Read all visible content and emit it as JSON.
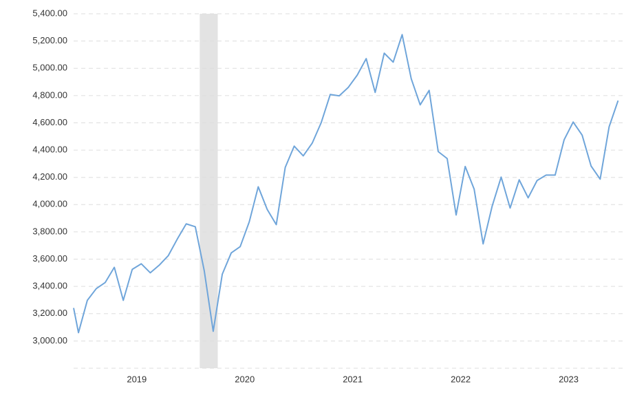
{
  "chart_data": {
    "type": "line",
    "x": [
      2018.915,
      2018.96,
      2019.042,
      2019.125,
      2019.208,
      2019.292,
      2019.375,
      2019.458,
      2019.542,
      2019.625,
      2019.708,
      2019.792,
      2019.875,
      2019.958,
      2020.042,
      2020.125,
      2020.208,
      2020.292,
      2020.375,
      2020.458,
      2020.542,
      2020.625,
      2020.708,
      2020.792,
      2020.875,
      2020.958,
      2021.042,
      2021.125,
      2021.208,
      2021.292,
      2021.375,
      2021.458,
      2021.542,
      2021.625,
      2021.708,
      2021.792,
      2021.875,
      2021.958,
      2022.042,
      2022.125,
      2022.208,
      2022.292,
      2022.375,
      2022.458,
      2022.542,
      2022.625,
      2022.708,
      2022.792,
      2022.875,
      2022.958,
      2023.042,
      2023.125,
      2023.208,
      2023.292,
      2023.375,
      2023.458,
      2023.542,
      2023.625,
      2023.708,
      2023.792,
      2023.875,
      2023.958
    ],
    "series": [
      {
        "color": "#6fa5da",
        "values": [
          3242,
          3061,
          3298,
          3384,
          3429,
          3540,
          3298,
          3525,
          3566,
          3500,
          3556,
          3626,
          3747,
          3859,
          3838,
          3515,
          3071,
          3490,
          3646,
          3692,
          3874,
          4131,
          3965,
          3853,
          4273,
          4429,
          4358,
          4451,
          4601,
          4808,
          4798,
          4859,
          4950,
          5071,
          4823,
          5111,
          5045,
          5247,
          4924,
          4732,
          4838,
          4389,
          4338,
          3924,
          4280,
          4113,
          3712,
          3990,
          4202,
          3975,
          4182,
          4050,
          4177,
          4217,
          4217,
          4475,
          4606,
          4510,
          4283,
          4187,
          4571,
          4763
        ]
      }
    ],
    "shade": [
      2020.083,
      2020.25
    ],
    "xlim": [
      2018.915,
      2024.0
    ],
    "ylim": [
      2800,
      5400
    ],
    "xticks": [
      {
        "value": 2019.5,
        "label": "2019"
      },
      {
        "value": 2020.5,
        "label": "2020"
      },
      {
        "value": 2021.5,
        "label": "2021"
      },
      {
        "value": 2022.5,
        "label": "2022"
      },
      {
        "value": 2023.5,
        "label": "2023"
      }
    ],
    "yticks": [
      {
        "value": 3000,
        "label": "3,000.00"
      },
      {
        "value": 3200,
        "label": "3,200.00"
      },
      {
        "value": 3400,
        "label": "3,400.00"
      },
      {
        "value": 3600,
        "label": "3,600.00"
      },
      {
        "value": 3800,
        "label": "3,800.00"
      },
      {
        "value": 4000,
        "label": "4,000.00"
      },
      {
        "value": 4200,
        "label": "4,200.00"
      },
      {
        "value": 4400,
        "label": "4,400.00"
      },
      {
        "value": 4600,
        "label": "4,600.00"
      },
      {
        "value": 4800,
        "label": "4,800.00"
      },
      {
        "value": 5000,
        "label": "5,000.00"
      },
      {
        "value": 5200,
        "label": "5,200.00"
      },
      {
        "value": 5400,
        "label": "5,400.00"
      }
    ],
    "grid": true
  }
}
